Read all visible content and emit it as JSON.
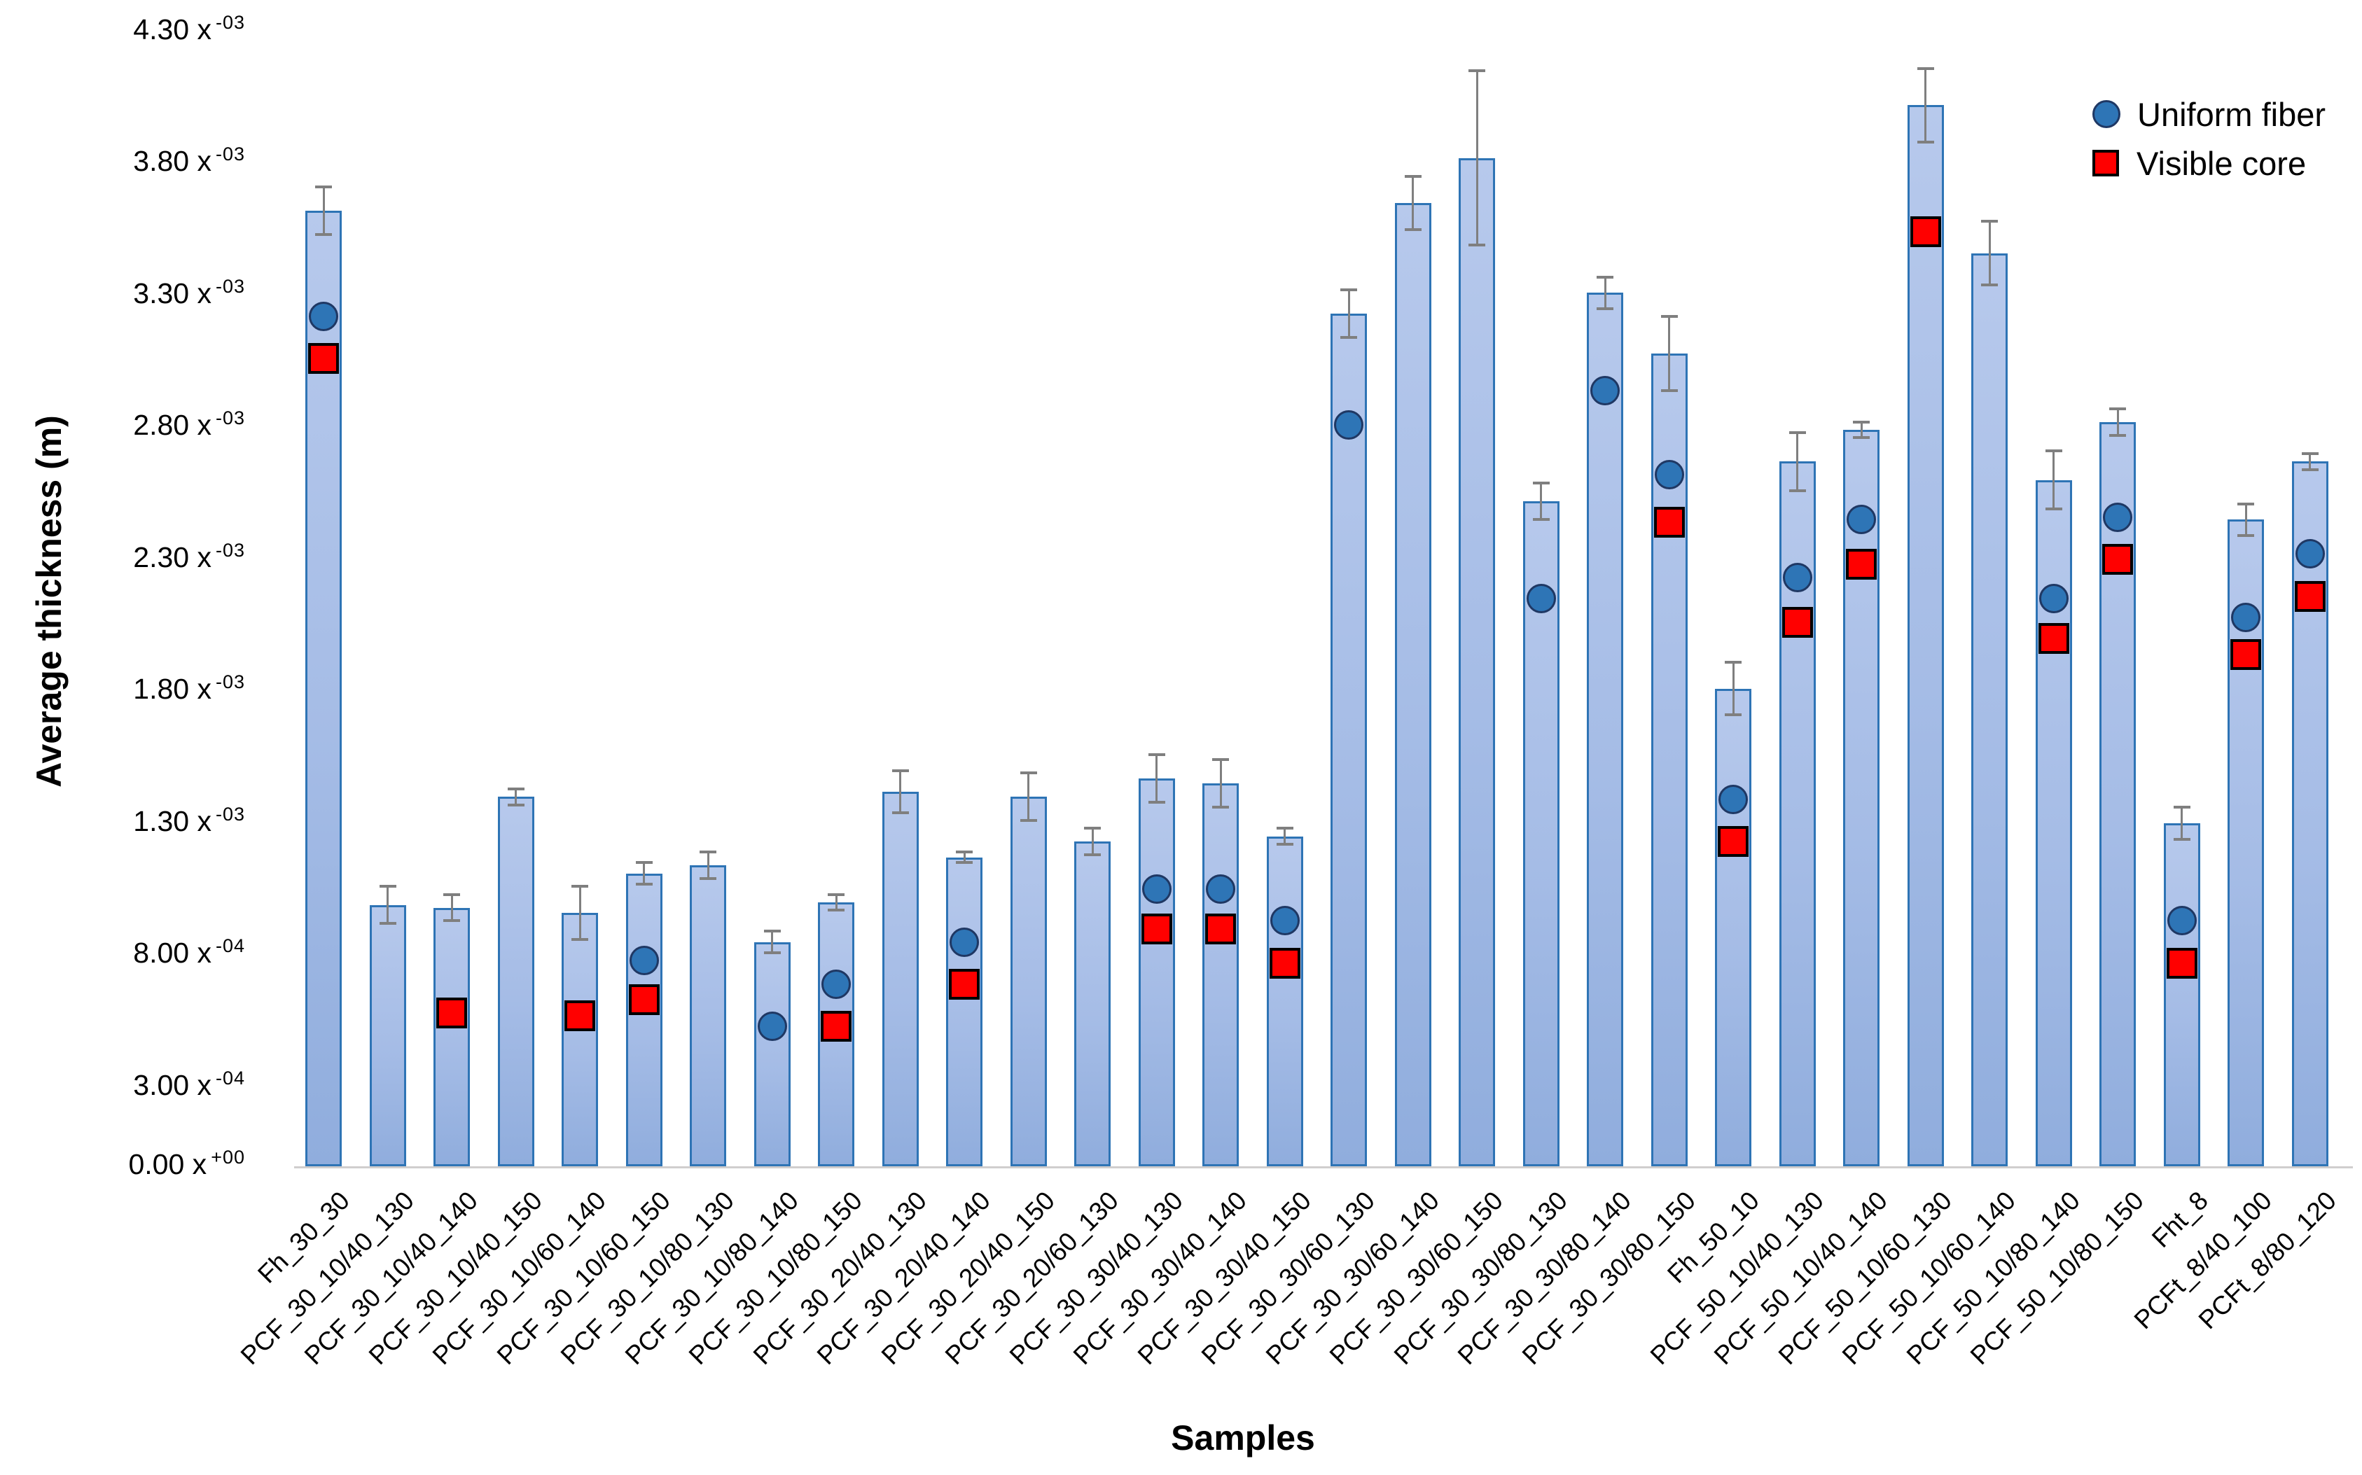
{
  "chart_data": {
    "type": "bar",
    "title": "",
    "xlabel": "Samples",
    "ylabel": "Average thickness (m)",
    "grid": false,
    "legend_position": "top-right",
    "ylim": [
      0,
      0.0043
    ],
    "yticks": [
      {
        "value": 0.0,
        "mantissa": "0.00",
        "exponent": "+00"
      },
      {
        "value": 0.0003,
        "mantissa": "3.00",
        "exponent": "-04"
      },
      {
        "value": 0.0008,
        "mantissa": "8.00",
        "exponent": "-04"
      },
      {
        "value": 0.0013,
        "mantissa": "1.30",
        "exponent": "-03"
      },
      {
        "value": 0.0018,
        "mantissa": "1.80",
        "exponent": "-03"
      },
      {
        "value": 0.0023,
        "mantissa": "2.30",
        "exponent": "-03"
      },
      {
        "value": 0.0028,
        "mantissa": "2.80",
        "exponent": "-03"
      },
      {
        "value": 0.0033,
        "mantissa": "3.30",
        "exponent": "-03"
      },
      {
        "value": 0.0038,
        "mantissa": "3.80",
        "exponent": "-03"
      },
      {
        "value": 0.0043,
        "mantissa": "4.30",
        "exponent": "-03"
      }
    ],
    "categories": [
      "Fh_30_30",
      "PCF_30_10/40_130",
      "PCF_30_10/40_140",
      "PCF_30_10/40_150",
      "PCF_30_10/60_140",
      "PCF_30_10/60_150",
      "PCF_30_10/80_130",
      "PCF_30_10/80_140",
      "PCF_30_10/80_150",
      "PCF_30_20/40_130",
      "PCF_30_20/40_140",
      "PCF_30_20/40_150",
      "PCF_30_20/60_130",
      "PCF_30_30/40_130",
      "PCF_30_30/40_140",
      "PCF_30_30/40_150",
      "PCF_30_30/60_130",
      "PCF_30_30/60_140",
      "PCF_30_30/60_150",
      "PCF_30_30/80_130",
      "PCF_30_30/80_140",
      "PCF_30_30/80_150",
      "Fh_50_10",
      "PCF_50_10/40_130",
      "PCF_50_10/40_140",
      "PCF_50_10/60_130",
      "PCF_50_10/60_140",
      "PCF_50_10/80_140",
      "PCF_50_10/80_150",
      "Fht_8",
      "PCFt_8/40_100",
      "PCFt_8/80_120"
    ],
    "series": [
      {
        "name": "Average thickness (bar)",
        "type": "bar",
        "values": [
          0.00362,
          0.00099,
          0.00098,
          0.0014,
          0.00096,
          0.00111,
          0.00114,
          0.00085,
          0.001,
          0.00142,
          0.00117,
          0.0014,
          0.00123,
          0.00147,
          0.00145,
          0.00125,
          0.00323,
          0.00365,
          0.00382,
          0.00252,
          0.00331,
          0.00308,
          0.00181,
          0.00267,
          0.00279,
          0.00402,
          0.00346,
          0.0026,
          0.00282,
          0.0013,
          0.00245,
          0.00267
        ]
      },
      {
        "name": "Error (plus/minus)",
        "type": "error",
        "values": [
          9e-05,
          7e-05,
          5e-05,
          3e-05,
          0.0001,
          4e-05,
          5e-05,
          4e-05,
          3e-05,
          8e-05,
          2e-05,
          9e-05,
          5e-05,
          9e-05,
          9e-05,
          3e-05,
          9e-05,
          0.0001,
          0.00033,
          7e-05,
          6e-05,
          0.00014,
          0.0001,
          0.00011,
          3e-05,
          0.00014,
          0.00012,
          0.00011,
          5e-05,
          6e-05,
          6e-05,
          3e-05
        ]
      },
      {
        "name": "Uniform fiber",
        "type": "scatter-circle",
        "values": [
          0.00322,
          null,
          null,
          null,
          null,
          0.00078,
          null,
          0.00053,
          0.00069,
          null,
          0.00085,
          null,
          null,
          0.00105,
          0.00105,
          0.00093,
          0.00281,
          null,
          null,
          0.00215,
          0.00294,
          0.00262,
          0.00139,
          0.00223,
          0.00245,
          null,
          null,
          0.00215,
          0.00246,
          0.00093,
          0.00208,
          0.00232
        ]
      },
      {
        "name": "Visible core",
        "type": "scatter-square",
        "values": [
          0.00306,
          null,
          0.00058,
          null,
          0.00057,
          0.00063,
          null,
          null,
          0.00053,
          null,
          0.00069,
          null,
          null,
          0.0009,
          0.0009,
          0.00077,
          null,
          null,
          null,
          null,
          null,
          0.00244,
          0.00123,
          0.00206,
          0.00228,
          0.00354,
          null,
          0.002,
          0.0023,
          0.00077,
          0.00194,
          0.00216
        ]
      }
    ]
  },
  "axes": {
    "y_title": "Average thickness (m)",
    "x_title": "Samples"
  },
  "legend": {
    "uniform_fiber_label": "Uniform fiber",
    "visible_core_label": "Visible core"
  },
  "colors": {
    "bar_fill_top": "#b7c9ec",
    "bar_fill_mid": "#a5bce6",
    "bar_fill_bottom": "#90addd",
    "bar_border": "#2e74b5",
    "circle_fill": "#2e75b6",
    "circle_border": "#1f3864",
    "square_fill": "#ff0000",
    "square_border": "#000000",
    "error_bar": "#7f7f7f",
    "baseline": "#d0cece",
    "text": "#000000"
  }
}
